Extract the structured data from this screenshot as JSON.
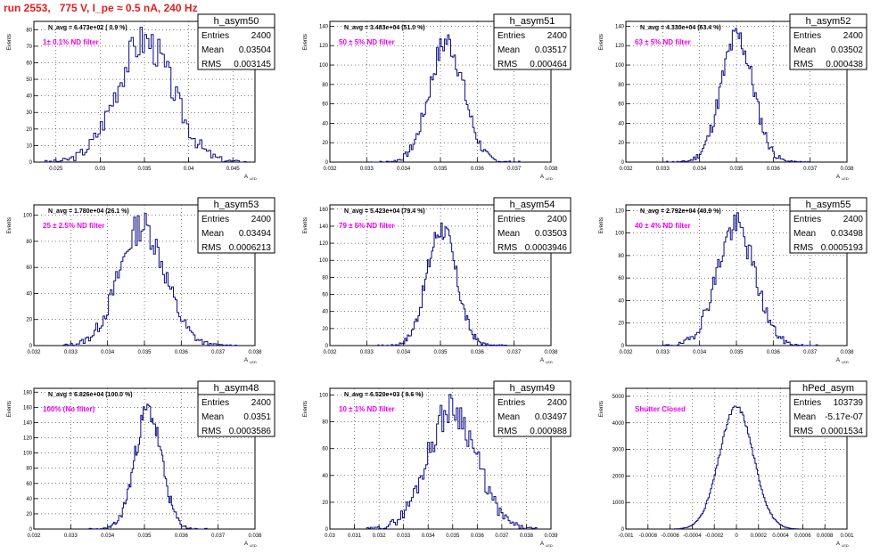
{
  "page": {
    "title": "run 2553,   775 V, I_pe ≈ 0.5 nA, 240 Hz"
  },
  "stat_labels": {
    "entries": "Entries",
    "mean": "Mean",
    "rms": "RMS"
  },
  "y_axis_label": "Events",
  "x_axis_label": "A",
  "x_axis_label_sub": "LED",
  "colors": {
    "histogram": "#0a0a80",
    "title": "#e02020",
    "annotation": "#ee00ee"
  },
  "chart_data": [
    {
      "type": "bar",
      "name": "h_asym50",
      "nlabel": "N_avg = 6.473e+02 ( 0.9 %)",
      "note": "1± 0.1% ND filter",
      "entries": "2400",
      "mean": "0.03504",
      "rms": "0.003145",
      "xlim": [
        0.0225,
        0.0475
      ],
      "ylim": [
        0,
        85
      ],
      "xticks": [
        "0.025",
        "0.03",
        "0.035",
        "0.04",
        "0.045"
      ],
      "xtickvals": [
        0.025,
        0.03,
        0.035,
        0.04,
        0.045
      ],
      "yticks": [
        0,
        10,
        20,
        30,
        40,
        50,
        60,
        70,
        80
      ],
      "bins": {
        "lo": 0.0235,
        "hi": 0.0465,
        "n": 92,
        "mu": 0.03504,
        "sigma": 0.003145,
        "peak": 80,
        "seed": 3
      }
    },
    {
      "type": "bar",
      "name": "h_asym51",
      "nlabel": "N_avg = 3.483e+04 (51.0 %)",
      "note": "50 ± 5% ND filter",
      "entries": "2400",
      "mean": "0.03517",
      "rms": "0.000464",
      "xlim": [
        0.032,
        0.038
      ],
      "ylim": [
        0,
        145
      ],
      "xticks": [
        "0.032",
        "0.033",
        "0.034",
        "0.035",
        "0.036",
        "0.037",
        "0.038"
      ],
      "xtickvals": [
        0.032,
        0.033,
        0.034,
        0.035,
        0.036,
        0.037,
        0.038
      ],
      "yticks": [
        0,
        20,
        40,
        60,
        80,
        100,
        120,
        140
      ],
      "bins": {
        "lo": 0.0331,
        "hi": 0.0372,
        "n": 96,
        "mu": 0.03517,
        "sigma": 0.000464,
        "peak": 135,
        "seed": 7
      }
    },
    {
      "type": "bar",
      "name": "h_asym52",
      "nlabel": "N_avg = 4.330e+04 (63.4 %)",
      "note": "63 ± 5% ND filter",
      "entries": "2400",
      "mean": "0.03502",
      "rms": "0.000438",
      "xlim": [
        0.032,
        0.038
      ],
      "ylim": [
        0,
        145
      ],
      "xticks": [
        "0.032",
        "0.033",
        "0.034",
        "0.035",
        "0.036",
        "0.037",
        "0.038"
      ],
      "xtickvals": [
        0.032,
        0.033,
        0.034,
        0.035,
        0.036,
        0.037,
        0.038
      ],
      "yticks": [
        0,
        20,
        40,
        60,
        80,
        100,
        120,
        140
      ],
      "bins": {
        "lo": 0.0331,
        "hi": 0.037,
        "n": 96,
        "mu": 0.03502,
        "sigma": 0.000438,
        "peak": 140,
        "seed": 11
      }
    },
    {
      "type": "bar",
      "name": "h_asym53",
      "nlabel": "N_avg = 1.780e+04 (26.1 %)",
      "note": "25 ± 2.5% ND filter",
      "entries": "2400",
      "mean": "0.03494",
      "rms": "0.0006213",
      "xlim": [
        0.032,
        0.038
      ],
      "ylim": [
        0,
        108
      ],
      "xticks": [
        "0.032",
        "0.033",
        "0.034",
        "0.035",
        "0.036",
        "0.037",
        "0.038"
      ],
      "xtickvals": [
        0.032,
        0.033,
        0.034,
        0.035,
        0.036,
        0.037,
        0.038
      ],
      "yticks": [
        0,
        20,
        40,
        60,
        80,
        100
      ],
      "bins": {
        "lo": 0.0328,
        "hi": 0.0375,
        "n": 96,
        "mu": 0.03494,
        "sigma": 0.0006213,
        "peak": 100,
        "seed": 13
      }
    },
    {
      "type": "bar",
      "name": "h_asym54",
      "nlabel": "N_avg = 5.423e+04 (79.4 %)",
      "note": "79 ± 5% ND filter",
      "entries": "2400",
      "mean": "0.03503",
      "rms": "0.0003946",
      "xlim": [
        0.032,
        0.038
      ],
      "ylim": [
        0,
        165
      ],
      "xticks": [
        "0.032",
        "0.033",
        "0.034",
        "0.035",
        "0.036",
        "0.037",
        "0.038"
      ],
      "xtickvals": [
        0.032,
        0.033,
        0.034,
        0.035,
        0.036,
        0.037,
        0.038
      ],
      "yticks": [
        0,
        20,
        40,
        60,
        80,
        100,
        120,
        140,
        160
      ],
      "bins": {
        "lo": 0.0333,
        "hi": 0.0368,
        "n": 96,
        "mu": 0.03503,
        "sigma": 0.0003946,
        "peak": 150,
        "seed": 17
      }
    },
    {
      "type": "bar",
      "name": "h_asym55",
      "nlabel": "N_avg = 2.792e+04 (40.9 %)",
      "note": "40 ± 4% ND filter",
      "entries": "2400",
      "mean": "0.03498",
      "rms": "0.0005193",
      "xlim": [
        0.032,
        0.038
      ],
      "ylim": [
        0,
        125
      ],
      "xticks": [
        "0.032",
        "0.033",
        "0.034",
        "0.035",
        "0.036",
        "0.037",
        "0.038"
      ],
      "xtickvals": [
        0.032,
        0.033,
        0.034,
        0.035,
        0.036,
        0.037,
        0.038
      ],
      "yticks": [
        0,
        20,
        40,
        60,
        80,
        100,
        120
      ],
      "bins": {
        "lo": 0.033,
        "hi": 0.0372,
        "n": 96,
        "mu": 0.03498,
        "sigma": 0.0005193,
        "peak": 115,
        "seed": 19
      }
    },
    {
      "type": "bar",
      "name": "h_asym48",
      "nlabel": "N_avg = 6.826e+04 (100.0 %)",
      "note": "100% (No filter)",
      "entries": "2400",
      "mean": "0.0351",
      "rms": "0.0003586",
      "xlim": [
        0.032,
        0.038
      ],
      "ylim": [
        0,
        185
      ],
      "xticks": [
        "0.032",
        "0.033",
        "0.034",
        "0.035",
        "0.036",
        "0.037",
        "0.038"
      ],
      "xtickvals": [
        0.032,
        0.033,
        0.034,
        0.035,
        0.036,
        0.037,
        0.038
      ],
      "yticks": [
        0,
        20,
        40,
        60,
        80,
        100,
        120,
        140,
        160,
        180
      ],
      "bins": {
        "lo": 0.0335,
        "hi": 0.0367,
        "n": 96,
        "mu": 0.0351,
        "sigma": 0.0003586,
        "peak": 170,
        "seed": 23
      }
    },
    {
      "type": "bar",
      "name": "h_asym49",
      "nlabel": "N_avg = 6.520e+03 ( 9.6 %)",
      "note": "10 ± 1% ND filter",
      "entries": "2400",
      "mean": "0.03497",
      "rms": "0.000988",
      "xlim": [
        0.03,
        0.039
      ],
      "ylim": [
        0,
        105
      ],
      "xticks": [
        "0.03",
        "0.031",
        "0.032",
        "0.033",
        "0.034",
        "0.035",
        "0.036",
        "0.037",
        "0.038",
        "0.039"
      ],
      "xtickvals": [
        0.03,
        0.031,
        0.032,
        0.033,
        0.034,
        0.035,
        0.036,
        0.037,
        0.038,
        0.039
      ],
      "yticks": [
        0,
        20,
        40,
        60,
        80,
        100
      ],
      "bins": {
        "lo": 0.0315,
        "hi": 0.0385,
        "n": 96,
        "mu": 0.03497,
        "sigma": 0.000988,
        "peak": 98,
        "seed": 29
      }
    },
    {
      "type": "bar",
      "name": "hPed_asym",
      "nlabel": "",
      "note": "Shutter Closed",
      "entries": "103739",
      "mean": "-5.17e-07",
      "rms": "0.0001534",
      "xlim": [
        -0.001,
        0.001
      ],
      "ylim": [
        0,
        5300
      ],
      "xticks": [
        "-0.001",
        "-0.0008",
        "-0.0006",
        "-0.0004",
        "-0.0002",
        "0",
        "0.0002",
        "0.0004",
        "0.0006",
        "0.0008",
        "0.001"
      ],
      "xtickvals": [
        -0.001,
        -0.0008,
        -0.0006,
        -0.0004,
        -0.0002,
        0,
        0.0002,
        0.0004,
        0.0006,
        0.0008,
        0.001
      ],
      "yticks": [
        0,
        1000,
        2000,
        3000,
        4000,
        5000
      ],
      "bins": {
        "lo": -0.00056,
        "hi": 0.00056,
        "n": 100,
        "mu": 0,
        "sigma": 0.0001534,
        "peak": 5000,
        "seed": 31
      }
    }
  ]
}
